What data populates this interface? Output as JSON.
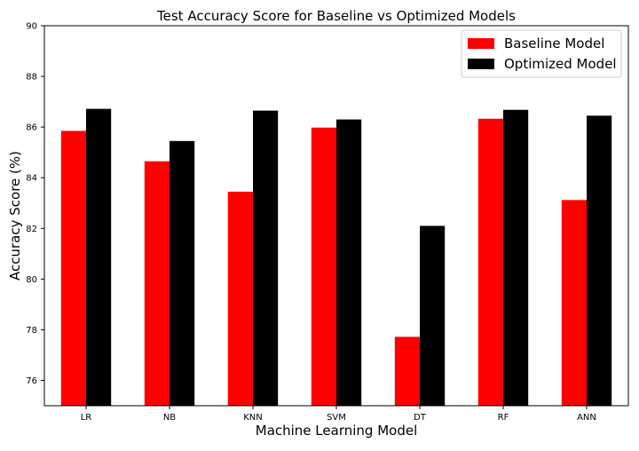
{
  "chart_data": {
    "type": "bar",
    "title": "Test Accuracy Score for Baseline vs Optimized Models",
    "xlabel": "Machine Learning Model",
    "ylabel": "Accuracy Score (%)",
    "categories": [
      "LR",
      "NB",
      "KNN",
      "SVM",
      "DT",
      "RF",
      "ANN"
    ],
    "series": [
      {
        "name": "Baseline Model",
        "color": "#ff0000",
        "values": [
          85.85,
          84.65,
          83.45,
          85.98,
          77.72,
          86.33,
          83.12
        ]
      },
      {
        "name": "Optimized Model",
        "color": "#000000",
        "values": [
          86.72,
          85.45,
          86.65,
          86.3,
          82.1,
          86.68,
          86.45
        ]
      }
    ],
    "ylim": [
      75,
      90
    ],
    "yticks": [
      "76",
      "78",
      "80",
      "82",
      "84",
      "86",
      "88",
      "90"
    ],
    "grid": false,
    "legend_position": "top-right"
  }
}
